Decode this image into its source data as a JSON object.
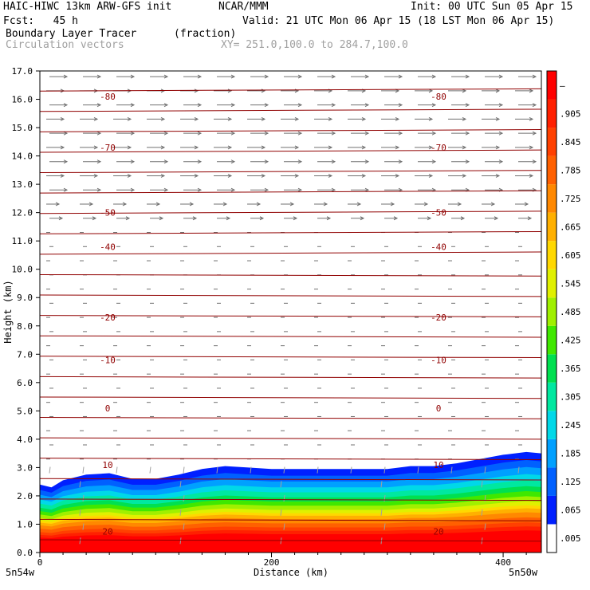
{
  "header": {
    "model": "HAIC-HIWC 13km ARW-GFS init",
    "org": "NCAR/MMM",
    "init": "Init: 00 UTC Sun 05 Apr 15",
    "fcst": "Fcst:   45 h",
    "valid": "Valid: 21 UTC Mon 06 Apr 15 (18 LST Mon 06 Apr 15)",
    "field": "Boundary Layer Tracer",
    "field_units": "(fraction)",
    "vectors": "Circulation vectors",
    "xy": "XY= 251.0,100.0 to 284.7,100.0"
  },
  "chart_data": {
    "type": "heatmap",
    "xlabel": "Distance (km)",
    "ylabel": "Height (km)",
    "xlim": [
      0,
      433
    ],
    "ylim": [
      0,
      17
    ],
    "x_ticks": [
      "0",
      "200",
      "400"
    ],
    "x_tick_values": [
      0,
      200,
      400
    ],
    "x_end_labels": [
      "5n54w",
      "5n50w"
    ],
    "y_ticks": [
      "0.0",
      "1.0",
      "2.0",
      "3.0",
      "4.0",
      "5.0",
      "6.0",
      "7.0",
      "8.0",
      "9.0",
      "10.0",
      "11.0",
      "12.0",
      "13.0",
      "14.0",
      "15.0",
      "16.0",
      "17.0"
    ],
    "colorbar": {
      "labels": [
        ".005",
        ".065",
        ".125",
        ".185",
        ".245",
        ".305",
        ".365",
        ".425",
        ".485",
        ".545",
        ".605",
        ".665",
        ".725",
        ".785",
        ".845",
        ".905",
        "–"
      ],
      "colors": [
        "#ffffff",
        "#0020ff",
        "#0060ff",
        "#00a0ff",
        "#00d8e8",
        "#00e8a0",
        "#00e050",
        "#40e800",
        "#a0f000",
        "#e0f000",
        "#ffd800",
        "#ffb000",
        "#ff8800",
        "#ff6000",
        "#ff4000",
        "#ff2000",
        "#ff0000"
      ]
    },
    "tracer_field": {
      "x": [
        0,
        10,
        20,
        40,
        60,
        80,
        100,
        120,
        140,
        160,
        180,
        200,
        220,
        240,
        260,
        280,
        300,
        320,
        340,
        360,
        380,
        400,
        420,
        433
      ],
      "top_height": [
        2.4,
        2.3,
        2.55,
        2.75,
        2.8,
        2.6,
        2.6,
        2.75,
        2.95,
        3.05,
        3.0,
        2.95,
        2.95,
        2.95,
        2.95,
        2.95,
        2.95,
        3.05,
        3.05,
        3.15,
        3.3,
        3.45,
        3.55,
        3.5
      ],
      "level_heights": {
        "0.005": 1.0,
        "0.065": 0.92,
        "0.125": 0.85,
        "0.185": 0.78,
        "0.245": 0.72,
        "0.305": 0.66,
        "0.365": 0.61,
        "0.425": 0.56,
        "0.485": 0.51,
        "0.545": 0.47,
        "0.605": 0.44,
        "0.665": 0.4,
        "0.725": 0.35,
        "0.785": 0.3,
        "0.845": 0.26,
        "0.905": 0.22,
        "1.0": 0.0
      }
    },
    "temperature_contours": {
      "units": "°C",
      "levels": [
        -80,
        -70,
        -50,
        -40,
        -20,
        -10,
        0,
        10,
        20
      ],
      "labels": [
        "-80",
        "-70",
        "-50",
        "-40",
        "-20",
        "-10",
        "0",
        "10",
        "20"
      ],
      "label_heights": [
        16.1,
        14.3,
        12.0,
        10.8,
        8.3,
        6.8,
        5.1,
        3.1,
        0.75
      ]
    }
  }
}
